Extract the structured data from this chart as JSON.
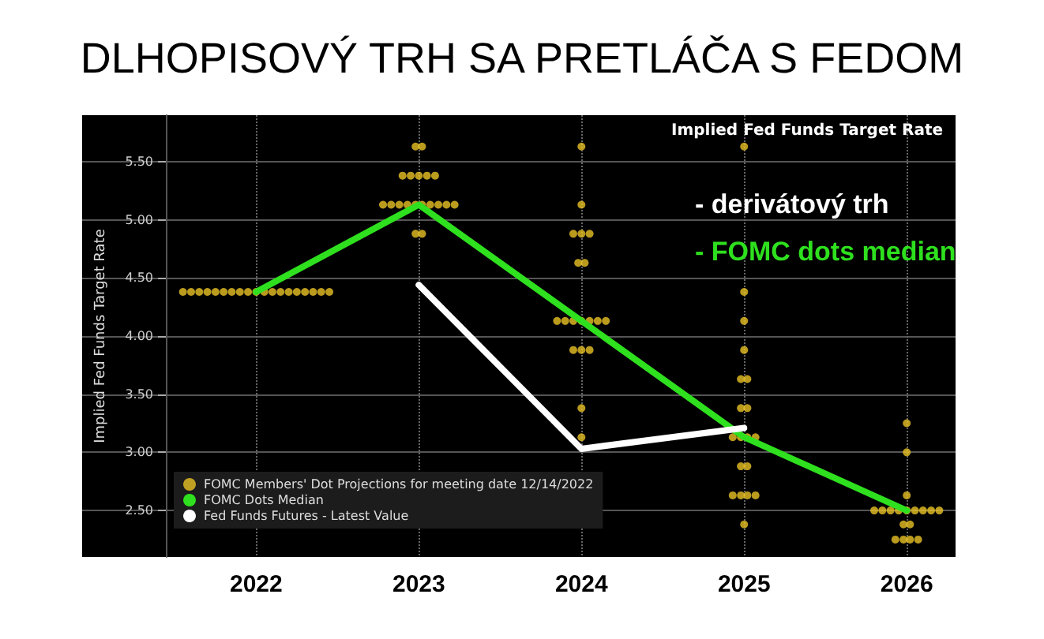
{
  "chart_data": {
    "type": "scatter",
    "title": "DLHOPISOVÝ TRH SA PRETLÁČA S FEDOM",
    "subtitle": "Implied Fed Funds Target Rate",
    "ylabel": "Implied Fed Funds Target Rate",
    "annotations": [
      "- derivátový trh",
      "- FOMC dots median"
    ],
    "xlim": [
      2020.93,
      2026.3
    ],
    "xticks": [
      2022,
      2023,
      2024,
      2025,
      2026
    ],
    "ylim": [
      2.1,
      5.9
    ],
    "yticks": [
      {
        "value": 2.5,
        "label": "2.50"
      },
      {
        "value": 3,
        "label": "3.00"
      },
      {
        "value": 3.5,
        "label": "3.50"
      },
      {
        "value": 4,
        "label": "4.00"
      },
      {
        "value": 4.5,
        "label": "4.50"
      },
      {
        "value": 5,
        "label": "5.00"
      },
      {
        "value": 5.5,
        "label": "5.50"
      }
    ],
    "grid": true,
    "legend": "bottom left",
    "series": [
      {
        "name": "FOMC Members' Dot Projections for meeting date 12/14/2022",
        "marker": "circle",
        "color": "#e8c226",
        "x": [
          2021.55,
          2021.6,
          2021.65,
          2021.7,
          2021.75,
          2021.8,
          2021.85,
          2021.9,
          2021.95,
          2022,
          2022.05,
          2022.1,
          2022.15,
          2022.2,
          2022.25,
          2022.3,
          2022.35,
          2022.4,
          2022.45,
          2022.98,
          2023.02,
          2022.9,
          2022.95,
          2023,
          2023.05,
          2023.1,
          2022.78,
          2022.83,
          2022.88,
          2022.93,
          2022.98,
          2023.02,
          2023.07,
          2023.12,
          2023.17,
          2023.22,
          2022.98,
          2023.02,
          2024,
          2024,
          2023.95,
          2024,
          2024.05,
          2023.98,
          2024.02,
          2023.85,
          2023.9,
          2023.95,
          2024,
          2024.05,
          2024.1,
          2024.15,
          2023.95,
          2024,
          2024.05,
          2024,
          2024,
          2025,
          2025,
          2025,
          2025,
          2024.98,
          2025.02,
          2024.98,
          2025.02,
          2024.93,
          2024.98,
          2025.02,
          2025.07,
          2024.98,
          2025.02,
          2024.93,
          2024.98,
          2025.02,
          2025.07,
          2025,
          2026,
          2026,
          2026,
          2025.8,
          2025.85,
          2025.9,
          2025.95,
          2026,
          2026.05,
          2026.1,
          2026.15,
          2026.2,
          2025.98,
          2026.02,
          2025.93,
          2025.98,
          2026.02,
          2026.07
        ],
        "values": [
          4.38,
          4.38,
          4.38,
          4.38,
          4.38,
          4.38,
          4.38,
          4.38,
          4.38,
          4.38,
          4.38,
          4.38,
          4.38,
          4.38,
          4.38,
          4.38,
          4.38,
          4.38,
          4.38,
          5.63,
          5.63,
          5.38,
          5.38,
          5.38,
          5.38,
          5.38,
          5.13,
          5.13,
          5.13,
          5.13,
          5.13,
          5.13,
          5.13,
          5.13,
          5.13,
          5.13,
          4.88,
          4.88,
          5.63,
          5.13,
          4.88,
          4.88,
          4.88,
          4.63,
          4.63,
          4.13,
          4.13,
          4.13,
          4.13,
          4.13,
          4.13,
          4.13,
          3.88,
          3.88,
          3.88,
          3.38,
          3.13,
          5.63,
          4.38,
          4.13,
          3.88,
          3.63,
          3.63,
          3.38,
          3.38,
          3.13,
          3.13,
          3.13,
          3.13,
          2.88,
          2.88,
          2.63,
          2.63,
          2.63,
          2.63,
          2.38,
          3.25,
          3,
          2.63,
          2.5,
          2.5,
          2.5,
          2.5,
          2.5,
          2.5,
          2.5,
          2.5,
          2.5,
          2.38,
          2.38,
          2.25,
          2.25,
          2.25,
          2.25
        ]
      },
      {
        "name": "FOMC Dots Median",
        "type": "line",
        "marker": "none",
        "color": "#2ee01e",
        "x": [
          2022,
          2023,
          2024,
          2025,
          2026
        ],
        "values": [
          4.38,
          5.13,
          4.13,
          3.13,
          2.5
        ]
      },
      {
        "name": "Fed Funds Futures - Latest Value",
        "type": "line",
        "marker": "none",
        "color": "#ffffff",
        "x": [
          2023,
          2024,
          2025
        ],
        "values": [
          4.44,
          3.03,
          3.21
        ]
      }
    ]
  }
}
